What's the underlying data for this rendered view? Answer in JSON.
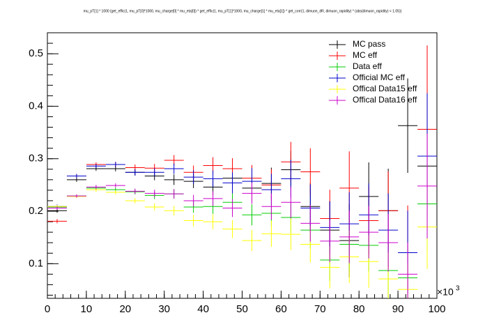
{
  "chart_data": {
    "type": "histogram-errors",
    "title": "mu_pT[1] * 1000 {get_effic(1, mu_pT[0]*1000, mu_charge[0] * mu_eta[0]) * get_effic(1, mu_pT[1]*1000, mu_charge[1] * mu_eta[1]) * get_corr(1, dimuon_dR, dimuon_rapidity) * (abs(dimuon_rapidity) < 1.05)}",
    "bins": [
      0,
      5,
      10,
      15,
      20,
      25,
      30,
      35,
      40,
      45,
      50,
      55,
      60,
      65,
      70,
      75,
      80,
      85,
      90,
      95,
      100
    ],
    "xlim": [
      0,
      100
    ],
    "xticks": [
      0,
      10,
      20,
      30,
      40,
      50,
      60,
      70,
      80,
      90,
      100
    ],
    "x_multiplier": {
      "base": "×10",
      "exponent": "3"
    },
    "ylim": [
      0.034,
      0.54
    ],
    "yticks": [
      0.1,
      0.2,
      0.3,
      0.4,
      0.5
    ],
    "legend": "top-right",
    "series": [
      {
        "name": "MC pass",
        "color": "#000000",
        "values": [
          0.201,
          0.26,
          0.281,
          0.281,
          0.274,
          0.267,
          0.26,
          0.257,
          0.246,
          0.263,
          0.244,
          0.253,
          0.279,
          0.209,
          0.164,
          0.144,
          0.228,
          0.201,
          0.363,
          0.286
        ],
        "errors": [
          0.004,
          0.004,
          0.004,
          0.005,
          0.006,
          0.008,
          0.01,
          0.013,
          0.016,
          0.02,
          0.025,
          0.03,
          0.036,
          0.045,
          0.055,
          0.07,
          0.065,
          0.08,
          0.09,
          0.13
        ]
      },
      {
        "name": "MC eff",
        "color": "#ff0000",
        "values": [
          0.181,
          0.267,
          0.289,
          0.289,
          0.283,
          0.282,
          0.297,
          0.274,
          0.287,
          0.281,
          0.263,
          0.25,
          0.294,
          0.275,
          0.186,
          0.244,
          0.182,
          0.201,
          0.121,
          0.356
        ],
        "errors": [
          0.004,
          0.004,
          0.004,
          0.005,
          0.006,
          0.008,
          0.01,
          0.013,
          0.016,
          0.02,
          0.025,
          0.03,
          0.038,
          0.045,
          0.055,
          0.07,
          0.065,
          0.075,
          0.09,
          0.16
        ]
      },
      {
        "name": "Data eff",
        "color": "#00cc00",
        "values": [
          0.208,
          0.229,
          0.244,
          0.241,
          0.237,
          0.23,
          0.233,
          0.208,
          0.209,
          0.217,
          0.193,
          0.196,
          0.188,
          0.164,
          0.107,
          0.137,
          0.135,
          0.087,
          0.073,
          0.214
        ],
        "errors": [
          0.003,
          0.003,
          0.004,
          0.004,
          0.005,
          0.007,
          0.009,
          0.011,
          0.014,
          0.017,
          0.02,
          0.025,
          0.03,
          0.035,
          0.04,
          0.05,
          0.05,
          0.055,
          0.06,
          0.09
        ]
      },
      {
        "name": "Official MC eff",
        "color": "#0000cc",
        "values": [
          0.209,
          0.267,
          0.286,
          0.289,
          0.274,
          0.274,
          0.281,
          0.265,
          0.262,
          0.254,
          0.257,
          0.241,
          0.262,
          0.206,
          0.169,
          0.176,
          0.193,
          0.164,
          0.121,
          0.305
        ],
        "errors": [
          0.004,
          0.004,
          0.004,
          0.005,
          0.006,
          0.008,
          0.01,
          0.013,
          0.016,
          0.02,
          0.025,
          0.03,
          0.036,
          0.045,
          0.05,
          0.06,
          0.06,
          0.07,
          0.08,
          0.12
        ]
      },
      {
        "name": "Offical Data15 eff",
        "color": "#ffff00",
        "values": [
          0.209,
          0.228,
          0.241,
          0.236,
          0.22,
          0.208,
          0.201,
          0.182,
          0.18,
          0.166,
          0.144,
          0.157,
          0.156,
          0.137,
          0.093,
          0.113,
          0.104,
          0.071,
          0.051,
          0.17
        ],
        "errors": [
          0.003,
          0.003,
          0.004,
          0.004,
          0.005,
          0.007,
          0.009,
          0.011,
          0.014,
          0.017,
          0.02,
          0.025,
          0.03,
          0.035,
          0.04,
          0.05,
          0.05,
          0.05,
          0.05,
          0.08
        ]
      },
      {
        "name": "Offical Data16 eff",
        "color": "#cc00cc",
        "values": [
          0.206,
          0.229,
          0.246,
          0.249,
          0.238,
          0.234,
          0.233,
          0.22,
          0.224,
          0.206,
          0.234,
          0.209,
          0.217,
          0.177,
          0.143,
          0.151,
          0.16,
          0.14,
          0.08,
          0.248
        ],
        "errors": [
          0.003,
          0.003,
          0.004,
          0.004,
          0.005,
          0.007,
          0.009,
          0.011,
          0.014,
          0.017,
          0.02,
          0.025,
          0.03,
          0.035,
          0.04,
          0.05,
          0.05,
          0.055,
          0.06,
          0.1
        ]
      }
    ]
  }
}
